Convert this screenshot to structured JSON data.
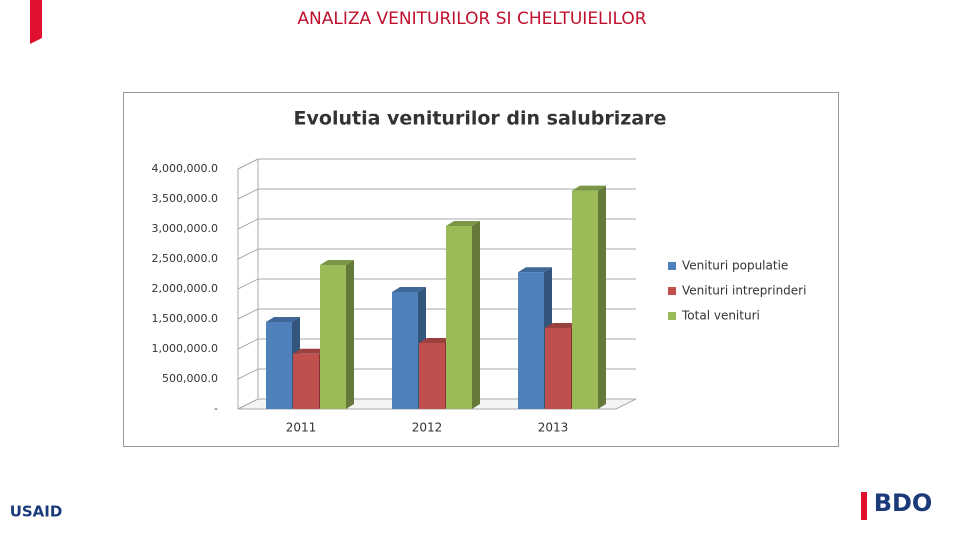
{
  "slide_title": "ANALIZA VENITURILOR SI CHELTUIELILOR",
  "logos": [
    "USAID",
    "BDO"
  ],
  "chart_data": {
    "type": "bar3d",
    "title": "Evolutia veniturilor din salubrizare",
    "categories": [
      "2011",
      "2012",
      "2013"
    ],
    "series": [
      {
        "name": "Venituri populatie",
        "color": "#4f81bd",
        "values": [
          1450000,
          1950000,
          2280000
        ]
      },
      {
        "name": "Venituri intreprinderi",
        "color": "#c0504d",
        "values": [
          920000,
          1100000,
          1350000
        ]
      },
      {
        "name": "Total venituri",
        "color": "#9bbb59",
        "values": [
          2400000,
          3050000,
          3640000
        ]
      }
    ],
    "ylim": [
      0,
      4000000
    ],
    "yticks": [
      {
        "value": 0,
        "label": "-"
      },
      {
        "value": 500000,
        "label": "500,000.0"
      },
      {
        "value": 1000000,
        "label": "1,000,000.0"
      },
      {
        "value": 1500000,
        "label": "1,500,000.0"
      },
      {
        "value": 2000000,
        "label": "2,000,000.0"
      },
      {
        "value": 2500000,
        "label": "2,500,000.0"
      },
      {
        "value": 3000000,
        "label": "3,000,000.0"
      },
      {
        "value": 3500000,
        "label": "3,500,000.0"
      },
      {
        "value": 4000000,
        "label": "4,000,000.0"
      }
    ],
    "grid": true,
    "legend": "right"
  }
}
